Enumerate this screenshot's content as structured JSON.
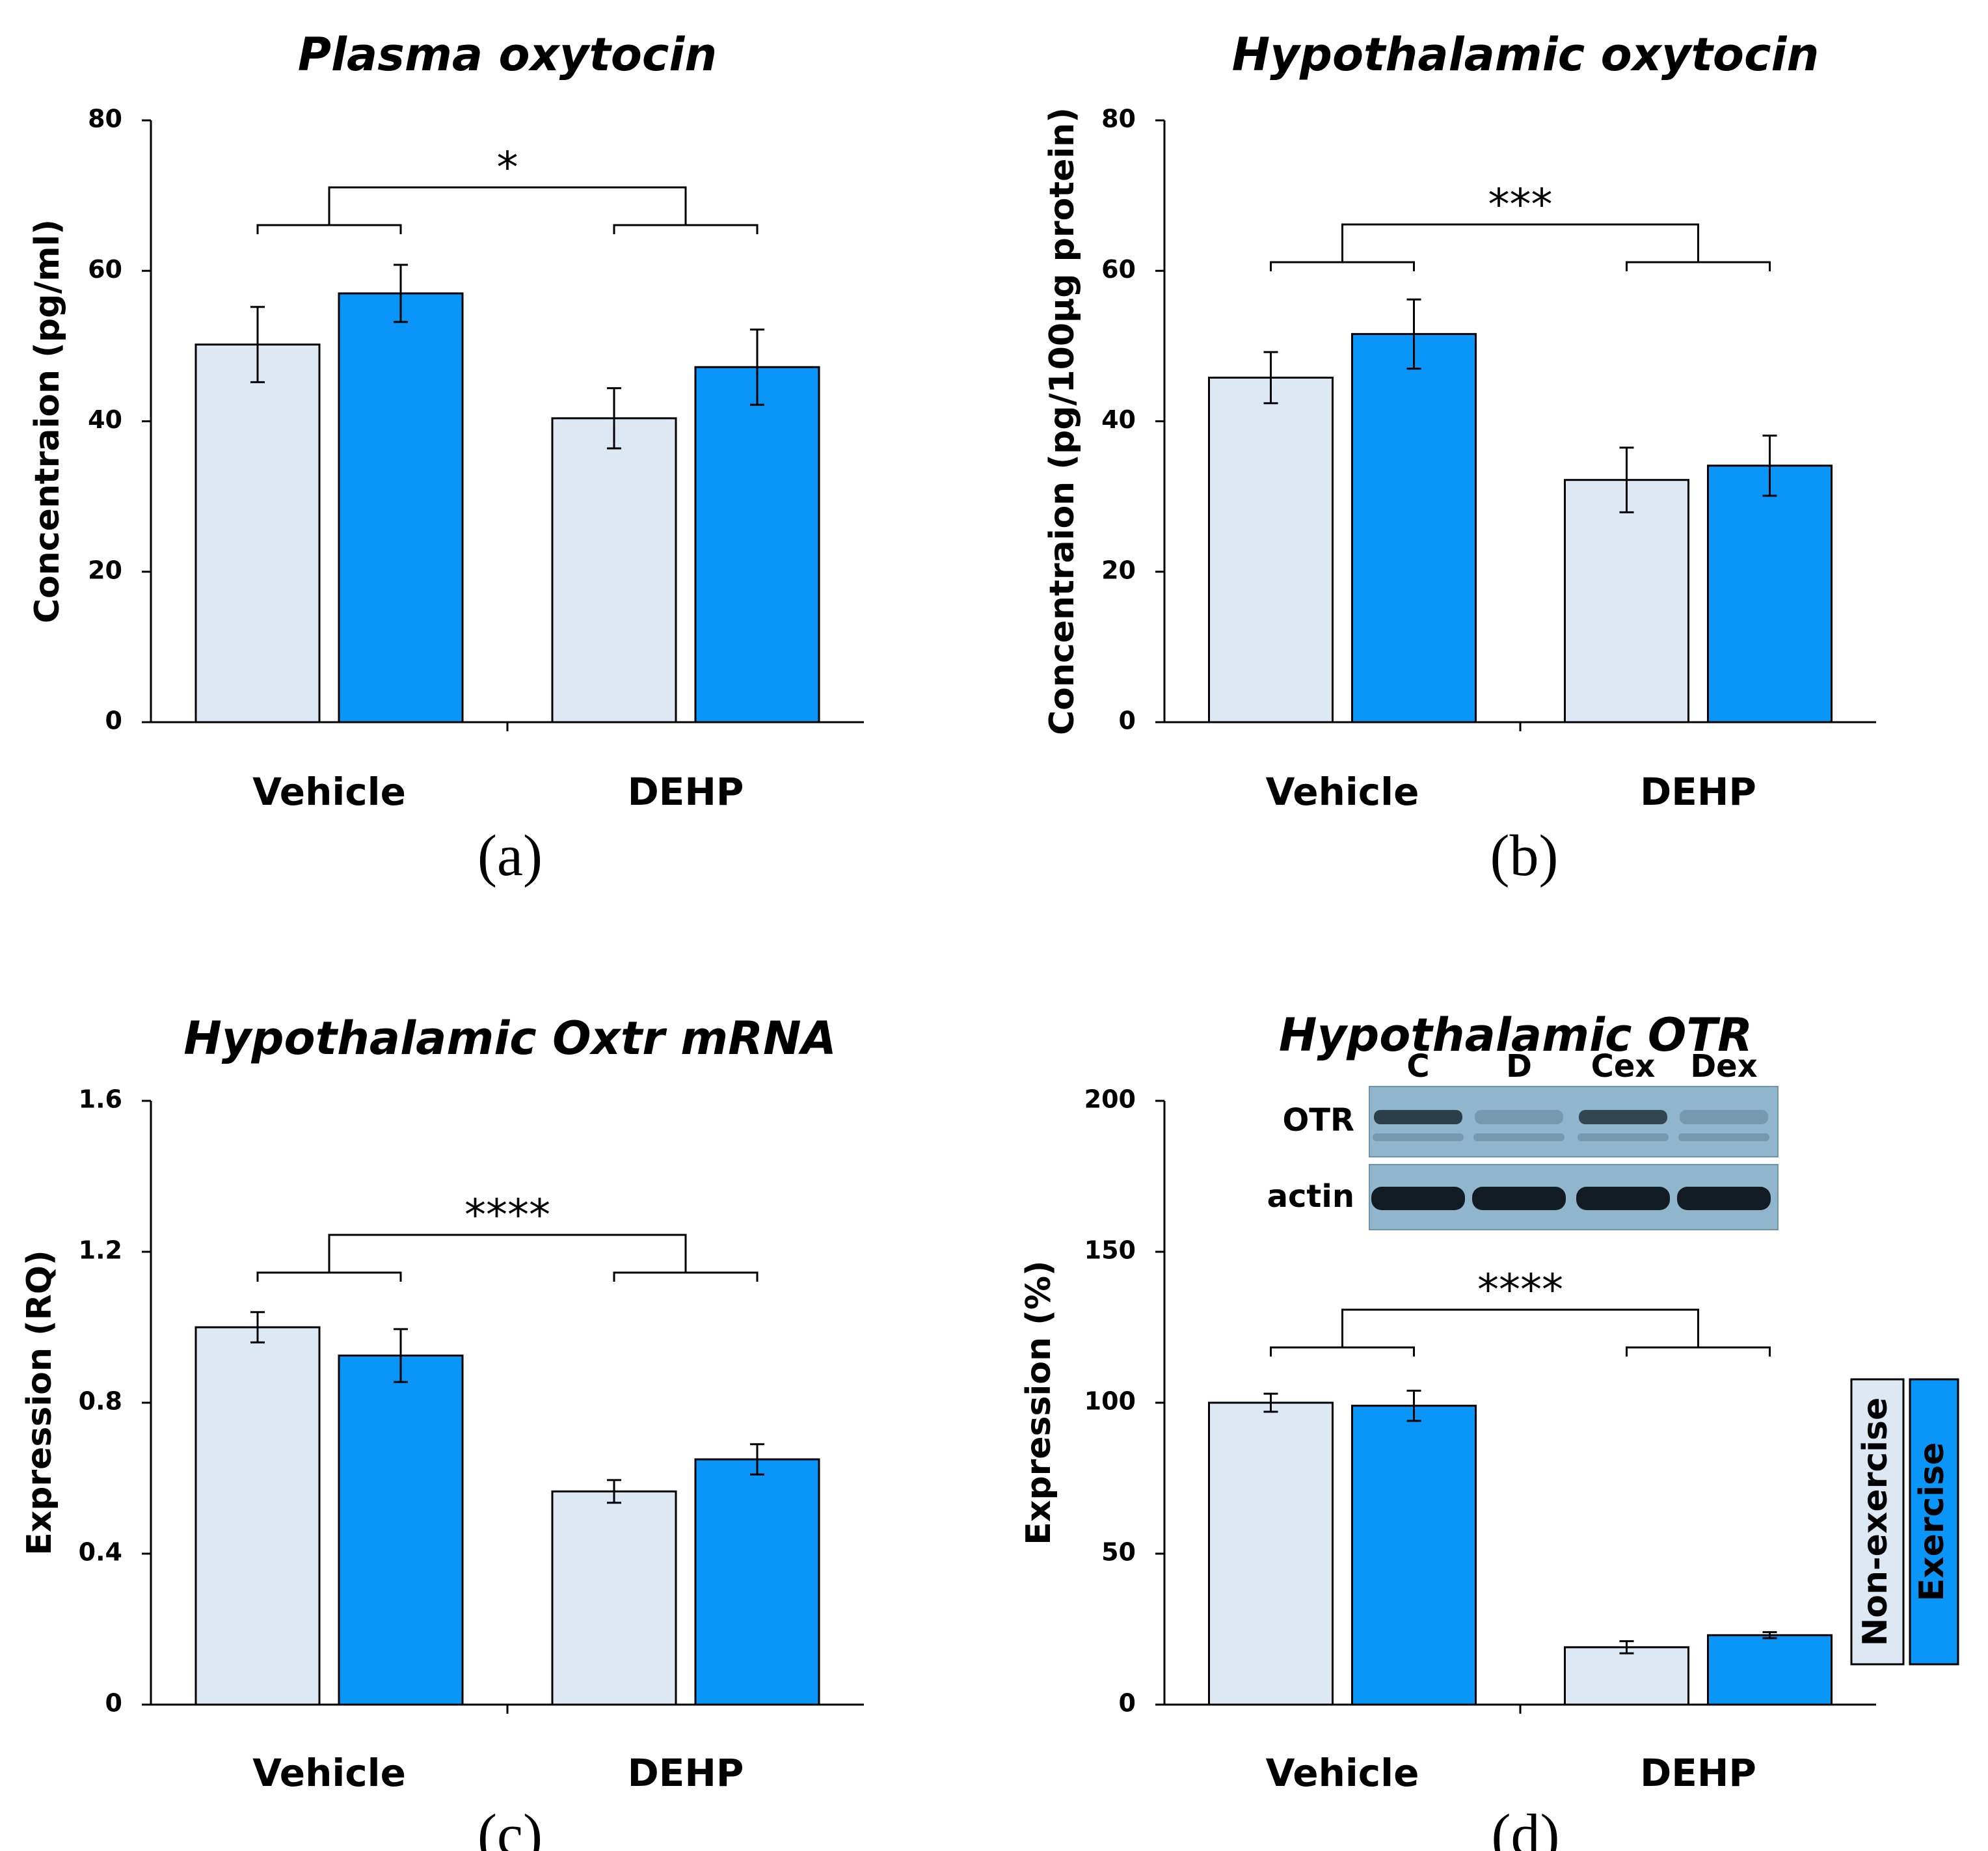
{
  "chart_data": [
    {
      "type": "bar",
      "title": "Plasma oxytocin",
      "ylabel": "Concentraion (pg/ml)",
      "categories": [
        "Vehicle",
        "DEHP"
      ],
      "ylim": [
        0,
        80
      ],
      "yticks": [
        "0",
        "20",
        "40",
        "60",
        "80"
      ],
      "series": [
        {
          "name": "Non-exercise",
          "values": [
            50.2,
            40.4
          ],
          "errors": [
            5.0,
            4.0
          ]
        },
        {
          "name": "Exercise",
          "values": [
            57.0,
            47.2
          ],
          "errors": [
            3.8,
            5.0
          ]
        }
      ],
      "significance": "*",
      "panel_label": "(a)"
    },
    {
      "type": "bar",
      "title": "Hypothalamic  oxytocin",
      "ylabel": "Concentraion (pg/100μg protein)",
      "categories": [
        "Vehicle",
        "DEHP"
      ],
      "ylim": [
        0,
        80
      ],
      "yticks": [
        "0",
        "20",
        "40",
        "60",
        "80"
      ],
      "series": [
        {
          "name": "Non-exercise",
          "values": [
            45.8,
            32.2
          ],
          "errors": [
            3.4,
            4.3
          ]
        },
        {
          "name": "Exercise",
          "values": [
            51.6,
            34.1
          ],
          "errors": [
            4.6,
            4.0
          ]
        }
      ],
      "significance": "***",
      "panel_label": "(b)"
    },
    {
      "type": "bar",
      "title": "Hypothalamic  Oxtr mRNA",
      "ylabel": "Expression (RQ)",
      "categories": [
        "Vehicle",
        "DEHP"
      ],
      "ylim": [
        0,
        1.6
      ],
      "yticks": [
        "0",
        "0.4",
        "0.8",
        "1.2",
        "1.6"
      ],
      "series": [
        {
          "name": "Non-exercise",
          "values": [
            1.0,
            0.565
          ],
          "errors": [
            0.04,
            0.03
          ]
        },
        {
          "name": "Exercise",
          "values": [
            0.925,
            0.65
          ],
          "errors": [
            0.07,
            0.04
          ]
        }
      ],
      "significance": "****",
      "panel_label": "(c)"
    },
    {
      "type": "bar",
      "title": "Hypothalamic  OTR",
      "ylabel": "Expression (%)",
      "categories": [
        "Vehicle",
        "DEHP"
      ],
      "ylim": [
        0,
        200
      ],
      "yticks": [
        "0",
        "50",
        "100",
        "150",
        "200"
      ],
      "series": [
        {
          "name": "Non-exercise",
          "values": [
            100,
            19
          ],
          "errors": [
            3,
            2
          ]
        },
        {
          "name": "Exercise",
          "values": [
            99,
            23
          ],
          "errors": [
            5,
            1
          ]
        }
      ],
      "significance": "****",
      "panel_label": "(d)",
      "blot": {
        "lanes": [
          "C",
          "D",
          "Cex",
          "Dex"
        ],
        "rows": [
          "OTR",
          "actin"
        ]
      }
    }
  ],
  "legend": [
    "Non-exercise",
    "Exercise"
  ],
  "colors": {
    "non_exercise": "#dde8f5",
    "exercise": "#0a96f8",
    "axis": "#000000",
    "blot_bg": "#8fb6cc"
  }
}
